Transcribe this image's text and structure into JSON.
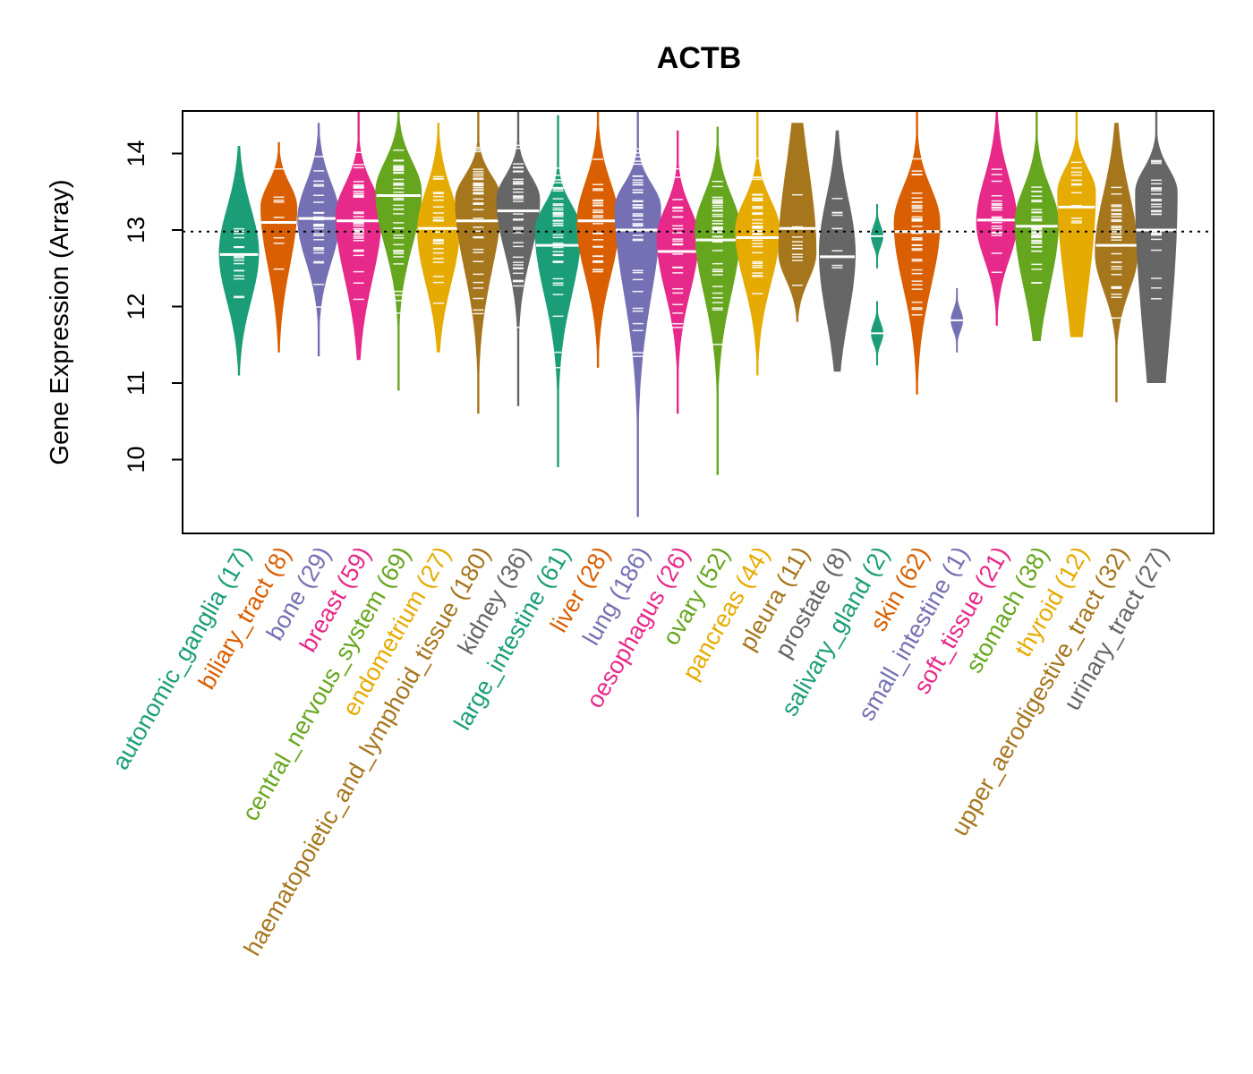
{
  "chart_data": {
    "type": "violin",
    "title": "ACTB",
    "xlabel": "",
    "ylabel": "Gene Expression (Array)",
    "ylim": [
      9.03,
      14.55
    ],
    "yticks": [
      10,
      11,
      12,
      13,
      14
    ],
    "reference_line": {
      "value": 12.98,
      "style": "dotted",
      "color": "#000000"
    },
    "grid": false,
    "legend": "none",
    "categories": [
      {
        "name": "autonomic_ganglia",
        "n": 17,
        "label": "autonomic_ganglia (17)",
        "color": "#1B9E77",
        "min": 11.1,
        "q1": 12.25,
        "median": 12.68,
        "q3": 13.15,
        "max": 14.1,
        "mode": 12.7
      },
      {
        "name": "biliary_tract",
        "n": 8,
        "label": "biliary_tract (8)",
        "color": "#D95F02",
        "min": 11.4,
        "q1": 12.75,
        "median": 13.1,
        "q3": 13.35,
        "max": 14.15,
        "mode": 13.3
      },
      {
        "name": "bone",
        "n": 29,
        "label": "bone (29)",
        "color": "#7570B3",
        "min": 11.35,
        "q1": 12.75,
        "median": 13.15,
        "q3": 13.5,
        "max": 14.4,
        "mode": 13.15
      },
      {
        "name": "breast",
        "n": 59,
        "label": "breast (59)",
        "color": "#E7298A",
        "min": 11.3,
        "q1": 12.6,
        "median": 13.12,
        "q3": 13.5,
        "max": 14.55,
        "mode": 13.2
      },
      {
        "name": "central_nervous_system",
        "n": 69,
        "label": "central_nervous_system (69)",
        "color": "#66A61E",
        "min": 10.9,
        "q1": 13.0,
        "median": 13.45,
        "q3": 13.8,
        "max": 14.55,
        "mode": 13.5
      },
      {
        "name": "endometrium",
        "n": 27,
        "label": "endometrium (27)",
        "color": "#E6AB02",
        "min": 11.4,
        "q1": 12.5,
        "median": 13.02,
        "q3": 13.4,
        "max": 14.4,
        "mode": 13.0
      },
      {
        "name": "haematopoietic_and_lymphoid_tissue",
        "n": 180,
        "label": "haematopoietic_and_lymphoid_tissue (180)",
        "color": "#A6761D",
        "min": 10.6,
        "q1": 12.75,
        "median": 13.12,
        "q3": 13.55,
        "max": 14.55,
        "mode": 13.4
      },
      {
        "name": "kidney",
        "n": 36,
        "label": "kidney (36)",
        "color": "#666666",
        "min": 10.7,
        "q1": 12.9,
        "median": 13.25,
        "q3": 13.55,
        "max": 14.55,
        "mode": 13.4
      },
      {
        "name": "large_intestine",
        "n": 61,
        "label": "large_intestine (61)",
        "color": "#1B9E77",
        "min": 9.9,
        "q1": 12.4,
        "median": 12.8,
        "q3": 13.25,
        "max": 14.5,
        "mode": 13.0
      },
      {
        "name": "liver",
        "n": 28,
        "label": "liver (28)",
        "color": "#D95F02",
        "min": 11.2,
        "q1": 12.6,
        "median": 13.12,
        "q3": 13.5,
        "max": 14.55,
        "mode": 13.1
      },
      {
        "name": "lung",
        "n": 186,
        "label": "lung (186)",
        "color": "#7570B3",
        "min": 9.25,
        "q1": 12.5,
        "median": 13.0,
        "q3": 13.45,
        "max": 14.55,
        "mode": 13.3
      },
      {
        "name": "oesophagus",
        "n": 26,
        "label": "oesophagus (26)",
        "color": "#E7298A",
        "min": 10.6,
        "q1": 12.4,
        "median": 12.72,
        "q3": 13.2,
        "max": 14.3,
        "mode": 12.9
      },
      {
        "name": "ovary",
        "n": 52,
        "label": "ovary (52)",
        "color": "#66A61E",
        "min": 9.8,
        "q1": 12.4,
        "median": 12.87,
        "q3": 13.35,
        "max": 14.35,
        "mode": 13.0
      },
      {
        "name": "pancreas",
        "n": 44,
        "label": "pancreas (44)",
        "color": "#E6AB02",
        "min": 11.1,
        "q1": 12.5,
        "median": 12.9,
        "q3": 13.3,
        "max": 14.55,
        "mode": 13.0
      },
      {
        "name": "pleura",
        "n": 11,
        "label": "pleura (11)",
        "color": "#A6761D",
        "min": 11.8,
        "q1": 12.55,
        "median": 13.02,
        "q3": 13.55,
        "max": 14.4,
        "mode": 12.7
      },
      {
        "name": "prostate",
        "n": 8,
        "label": "prostate (8)",
        "color": "#666666",
        "min": 11.15,
        "q1": 12.1,
        "median": 12.65,
        "q3": 13.25,
        "max": 14.3,
        "mode": 12.7
      },
      {
        "name": "salivary_gland",
        "n": 2,
        "label": "salivary_gland (2)",
        "color": "#1B9E77",
        "points": [
          12.92,
          11.65
        ]
      },
      {
        "name": "skin",
        "n": 62,
        "label": "skin (62)",
        "color": "#D95F02",
        "min": 10.85,
        "q1": 12.5,
        "median": 12.98,
        "q3": 13.45,
        "max": 14.55,
        "mode": 13.1
      },
      {
        "name": "small_intestine",
        "n": 1,
        "label": "small_intestine (1)",
        "color": "#7570B3",
        "points": [
          11.82
        ]
      },
      {
        "name": "soft_tissue",
        "n": 21,
        "label": "soft_tissue (21)",
        "color": "#E7298A",
        "min": 11.75,
        "q1": 12.75,
        "median": 13.13,
        "q3": 13.55,
        "max": 14.55,
        "mode": 13.1
      },
      {
        "name": "stomach",
        "n": 38,
        "label": "stomach (38)",
        "color": "#66A61E",
        "min": 11.55,
        "q1": 12.5,
        "median": 13.05,
        "q3": 13.45,
        "max": 14.55,
        "mode": 13.1
      },
      {
        "name": "thyroid",
        "n": 12,
        "label": "thyroid (12)",
        "color": "#E6AB02",
        "min": 11.6,
        "q1": 12.6,
        "median": 13.3,
        "q3": 13.7,
        "max": 14.55,
        "mode": 13.5
      },
      {
        "name": "upper_aerodigestive_tract",
        "n": 32,
        "label": "upper_aerodigestive_tract (32)",
        "color": "#A6761D",
        "min": 10.75,
        "q1": 12.35,
        "median": 12.8,
        "q3": 13.3,
        "max": 14.4,
        "mode": 12.7
      },
      {
        "name": "urinary_tract",
        "n": 27,
        "label": "urinary_tract (27)",
        "color": "#666666",
        "min": 11.0,
        "q1": 12.1,
        "median": 13.0,
        "q3": 13.5,
        "max": 14.55,
        "mode": 13.5
      }
    ]
  }
}
